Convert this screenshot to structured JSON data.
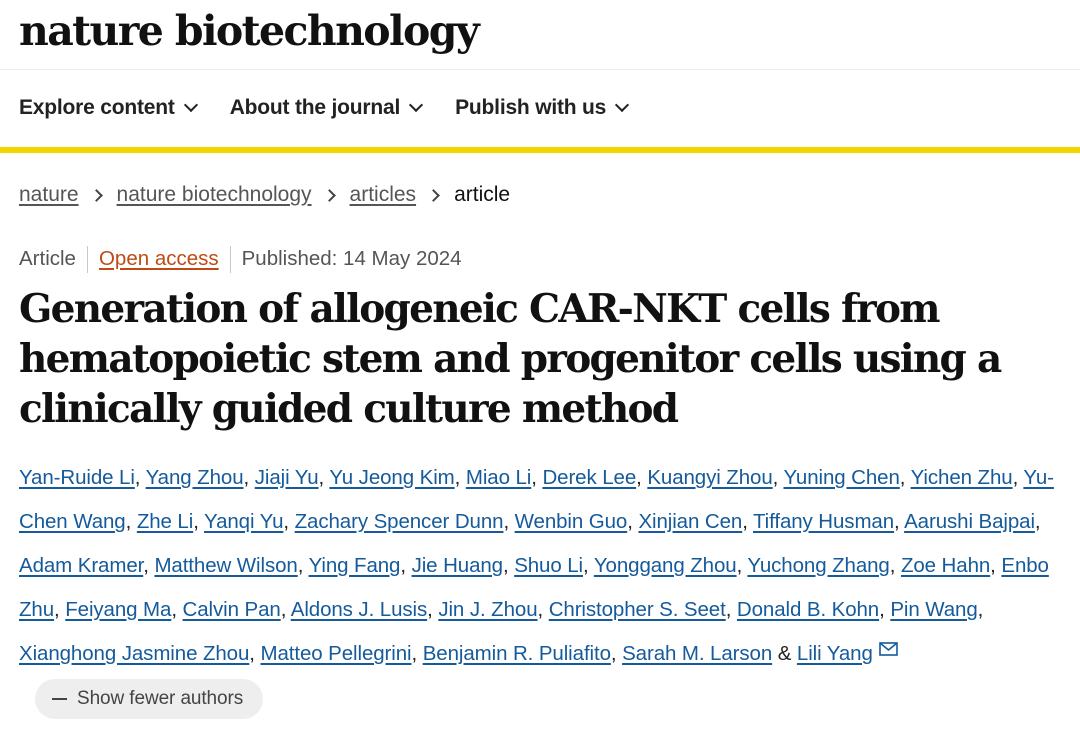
{
  "site": {
    "logo": "nature biotechnology"
  },
  "nav": {
    "items": [
      {
        "label": "Explore content"
      },
      {
        "label": "About the journal"
      },
      {
        "label": "Publish with us"
      }
    ]
  },
  "colors": {
    "accent_bar": "#f2d400",
    "link": "#155a9b",
    "open_access": "#c04a13"
  },
  "breadcrumb": {
    "items": [
      "nature",
      "nature biotechnology",
      "articles"
    ],
    "current": "article"
  },
  "article": {
    "type": "Article",
    "access": "Open access",
    "published": "Published: 14 May 2024",
    "title": "Generation of allogeneic CAR-NKT cells from hematopoietic stem and progenitor cells using a clinically guided culture method"
  },
  "authors": [
    "Yan-Ruide Li",
    "Yang Zhou",
    "Jiaji Yu",
    "Yu Jeong Kim",
    "Miao Li",
    "Derek Lee",
    "Kuangyi Zhou",
    "Yuning Chen",
    "Yichen Zhu",
    "Yu-Chen Wang",
    "Zhe Li",
    "Yanqi Yu",
    "Zachary Spencer Dunn",
    "Wenbin Guo",
    "Xinjian Cen",
    "Tiffany Husman",
    "Aarushi Bajpai",
    "Adam Kramer",
    "Matthew Wilson",
    "Ying Fang",
    "Jie Huang",
    "Shuo Li",
    "Yonggang Zhou",
    "Yuchong Zhang",
    "Zoe Hahn",
    "Enbo Zhu",
    "Feiyang Ma",
    "Calvin Pan",
    "Aldons J. Lusis",
    "Jin J. Zhou",
    "Christopher S. Seet",
    "Donald B. Kohn",
    "Pin Wang",
    "Xianghong Jasmine Zhou",
    "Matteo Pellegrini",
    "Benjamin R. Puliafito",
    "Sarah M. Larson",
    "Lili Yang"
  ],
  "authors_ui": {
    "separator": ", ",
    "last_separator": " & ",
    "corresponding_icon": "mail-icon",
    "show_fewer_label": "Show fewer authors"
  }
}
